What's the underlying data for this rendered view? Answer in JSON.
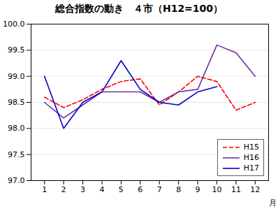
{
  "chart_data": {
    "type": "line",
    "title": "総合指数の動き　４市（H12=100）",
    "xlabel": "月",
    "x": [
      1,
      2,
      3,
      4,
      5,
      6,
      7,
      8,
      9,
      10,
      11,
      12
    ],
    "series": [
      {
        "name": "H15",
        "color": "#ff0000",
        "line_style": "dashed",
        "values": [
          98.6,
          98.4,
          98.55,
          98.75,
          98.9,
          98.95,
          98.45,
          98.7,
          99.0,
          98.9,
          98.35,
          98.5
        ]
      },
      {
        "name": "H16",
        "color": "#7030a0",
        "line_style": "solid",
        "values": [
          98.5,
          98.2,
          98.45,
          98.7,
          98.7,
          98.7,
          98.5,
          98.7,
          98.75,
          99.6,
          99.45,
          99.0
        ]
      },
      {
        "name": "H17",
        "color": "#0000cd",
        "line_style": "solid",
        "values": [
          99.0,
          98.0,
          98.5,
          98.7,
          99.3,
          98.75,
          98.5,
          98.45,
          98.7,
          98.8,
          null,
          null
        ]
      }
    ],
    "xlim": [
      0.3,
      12.7
    ],
    "xticks": [
      1,
      2,
      3,
      4,
      5,
      6,
      7,
      8,
      9,
      10,
      11,
      12
    ],
    "ylim": [
      97.0,
      100.0
    ],
    "yticks": [
      {
        "value": 97.0,
        "label": "97.0"
      },
      {
        "value": 97.5,
        "label": "97.5"
      },
      {
        "value": 98.0,
        "label": "98.0"
      },
      {
        "value": 98.5,
        "label": "98.5"
      },
      {
        "value": 99.0,
        "label": "99.0"
      },
      {
        "value": 99.5,
        "label": "99.5"
      },
      {
        "value": 100.0,
        "label": "100.0"
      }
    ],
    "grid": "y",
    "legend": "lower right"
  }
}
